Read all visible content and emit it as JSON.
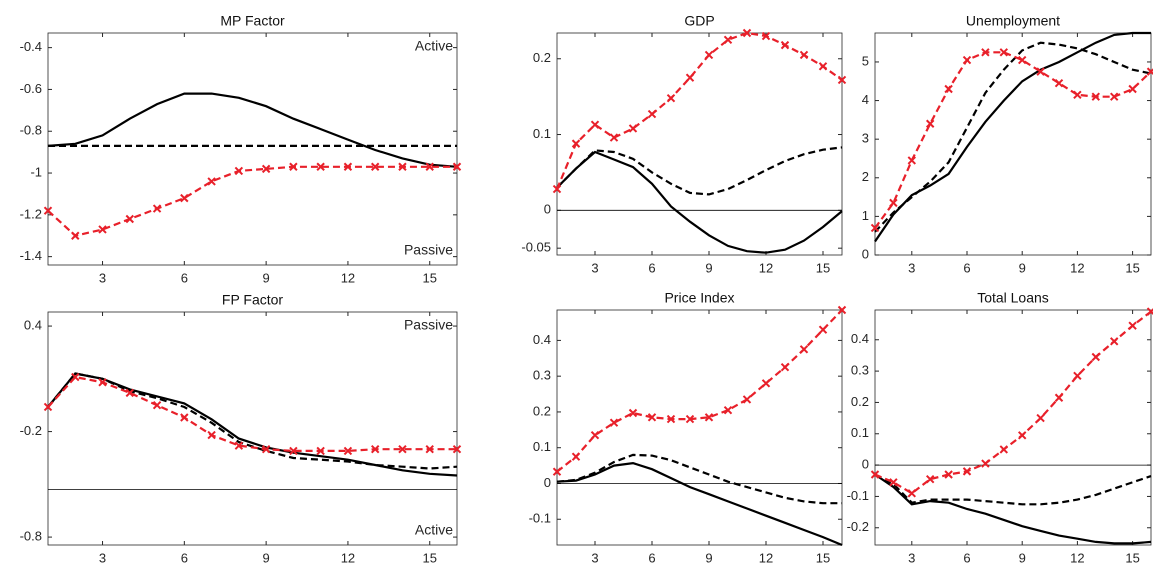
{
  "chart_data": [
    {
      "type": "line",
      "title": "MP Factor",
      "x": [
        1,
        2,
        3,
        4,
        5,
        6,
        7,
        8,
        9,
        10,
        11,
        12,
        13,
        14,
        15,
        16
      ],
      "xlim": [
        1,
        16
      ],
      "xticks": [
        3,
        6,
        9,
        12,
        15
      ],
      "ylim": [
        -1.44,
        -0.33
      ],
      "yticks": [
        -0.4,
        -0.6,
        -0.8,
        -1,
        -1.2,
        -1.4
      ],
      "annotations": [
        "Active",
        "Passive"
      ],
      "series": [
        {
          "color": "#000000",
          "style": "solid",
          "values": [
            -0.87,
            -0.86,
            -0.82,
            -0.74,
            -0.67,
            -0.62,
            -0.62,
            -0.64,
            -0.68,
            -0.74,
            -0.79,
            -0.84,
            -0.89,
            -0.93,
            -0.96,
            -0.97
          ]
        },
        {
          "color": "#000000",
          "style": "dashed",
          "values": [
            -0.87,
            -0.87,
            -0.87,
            -0.87,
            -0.87,
            -0.87,
            -0.87,
            -0.87,
            -0.87,
            -0.87,
            -0.87,
            -0.87,
            -0.87,
            -0.87,
            -0.87,
            -0.87
          ]
        },
        {
          "color": "#e8202a",
          "style": "dashed",
          "marker": "x",
          "values": [
            -1.18,
            -1.3,
            -1.27,
            -1.22,
            -1.17,
            -1.12,
            -1.04,
            -0.99,
            -0.98,
            -0.97,
            -0.97,
            -0.97,
            -0.97,
            -0.97,
            -0.97,
            -0.97
          ]
        }
      ]
    },
    {
      "type": "line",
      "title": "FP Factor",
      "x": [
        1,
        2,
        3,
        4,
        5,
        6,
        7,
        8,
        9,
        10,
        11,
        12,
        13,
        14,
        15,
        16
      ],
      "xlim": [
        1,
        16
      ],
      "xticks": [
        3,
        6,
        9,
        12,
        15
      ],
      "ylim": [
        -0.845,
        0.48
      ],
      "yticks": [
        0.4,
        -0.2,
        -0.8
      ],
      "hline": -0.53,
      "annotations": [
        "Passive",
        "Active"
      ],
      "series": [
        {
          "color": "#000000",
          "style": "solid",
          "values": [
            -0.06,
            0.13,
            0.1,
            0.04,
            0.0,
            -0.04,
            -0.13,
            -0.24,
            -0.29,
            -0.32,
            -0.34,
            -0.36,
            -0.39,
            -0.42,
            -0.44,
            -0.45
          ]
        },
        {
          "color": "#000000",
          "style": "dashed",
          "values": [
            -0.06,
            0.13,
            0.1,
            0.03,
            -0.01,
            -0.06,
            -0.15,
            -0.26,
            -0.31,
            -0.35,
            -0.36,
            -0.37,
            -0.39,
            -0.4,
            -0.41,
            -0.4
          ]
        },
        {
          "color": "#e8202a",
          "style": "dashed",
          "marker": "x",
          "values": [
            -0.06,
            0.11,
            0.08,
            0.02,
            -0.05,
            -0.12,
            -0.22,
            -0.28,
            -0.3,
            -0.31,
            -0.31,
            -0.31,
            -0.3,
            -0.3,
            -0.3,
            -0.3
          ]
        }
      ]
    },
    {
      "type": "line",
      "title": "GDP",
      "x": [
        1,
        2,
        3,
        4,
        5,
        6,
        7,
        8,
        9,
        10,
        11,
        12,
        13,
        14,
        15,
        16
      ],
      "xlim": [
        1,
        16
      ],
      "xticks": [
        3,
        6,
        9,
        12,
        15
      ],
      "ylim": [
        -0.059,
        0.234
      ],
      "yticks": [
        0.2,
        0.1,
        0,
        -0.05
      ],
      "hline": 0,
      "series": [
        {
          "color": "#000000",
          "style": "solid",
          "values": [
            0.03,
            0.055,
            0.077,
            0.067,
            0.057,
            0.035,
            0.005,
            -0.015,
            -0.033,
            -0.047,
            -0.054,
            -0.056,
            -0.052,
            -0.04,
            -0.022,
            -0.001
          ]
        },
        {
          "color": "#000000",
          "style": "dashed",
          "values": [
            0.03,
            0.055,
            0.079,
            0.077,
            0.068,
            0.05,
            0.035,
            0.023,
            0.021,
            0.028,
            0.04,
            0.053,
            0.065,
            0.074,
            0.08,
            0.083
          ]
        },
        {
          "color": "#e8202a",
          "style": "dashed",
          "marker": "x",
          "values": [
            0.028,
            0.088,
            0.113,
            0.096,
            0.108,
            0.127,
            0.148,
            0.175,
            0.205,
            0.225,
            0.234,
            0.23,
            0.218,
            0.205,
            0.19,
            0.172
          ]
        }
      ]
    },
    {
      "type": "line",
      "title": "Unemployment",
      "x": [
        1,
        2,
        3,
        4,
        5,
        6,
        7,
        8,
        9,
        10,
        11,
        12,
        13,
        14,
        15,
        16
      ],
      "xlim": [
        1,
        16
      ],
      "xticks": [
        3,
        6,
        9,
        12,
        15
      ],
      "ylim": [
        0,
        5.75
      ],
      "yticks": [
        0,
        1,
        2,
        3,
        4,
        5
      ],
      "series": [
        {
          "color": "#000000",
          "style": "solid",
          "values": [
            0.35,
            1.05,
            1.55,
            1.8,
            2.1,
            2.8,
            3.45,
            4.0,
            4.5,
            4.8,
            5.0,
            5.25,
            5.5,
            5.7,
            5.75,
            5.75
          ]
        },
        {
          "color": "#000000",
          "style": "dashed",
          "values": [
            0.6,
            1.1,
            1.5,
            1.9,
            2.4,
            3.3,
            4.2,
            4.8,
            5.3,
            5.5,
            5.45,
            5.35,
            5.2,
            5.0,
            4.8,
            4.7
          ]
        },
        {
          "color": "#e8202a",
          "style": "dashed",
          "marker": "x",
          "values": [
            0.7,
            1.35,
            2.45,
            3.4,
            4.3,
            5.05,
            5.25,
            5.25,
            5.05,
            4.75,
            4.45,
            4.15,
            4.1,
            4.1,
            4.3,
            4.75
          ]
        }
      ]
    },
    {
      "type": "line",
      "title": "Price Index",
      "x": [
        1,
        2,
        3,
        4,
        5,
        6,
        7,
        8,
        9,
        10,
        11,
        12,
        13,
        14,
        15,
        16
      ],
      "xlim": [
        1,
        16
      ],
      "xticks": [
        3,
        6,
        9,
        12,
        15
      ],
      "ylim": [
        -0.172,
        0.485
      ],
      "yticks": [
        0.4,
        0.3,
        0.2,
        0.1,
        0,
        -0.1
      ],
      "hline": 0,
      "series": [
        {
          "color": "#000000",
          "style": "solid",
          "values": [
            0.005,
            0.008,
            0.025,
            0.05,
            0.057,
            0.04,
            0.015,
            -0.01,
            -0.03,
            -0.05,
            -0.07,
            -0.09,
            -0.11,
            -0.13,
            -0.15,
            -0.172
          ]
        },
        {
          "color": "#000000",
          "style": "dashed",
          "values": [
            0.005,
            0.01,
            0.03,
            0.06,
            0.08,
            0.078,
            0.065,
            0.045,
            0.025,
            0.005,
            -0.01,
            -0.025,
            -0.04,
            -0.05,
            -0.055,
            -0.055
          ]
        },
        {
          "color": "#e8202a",
          "style": "dashed",
          "marker": "x",
          "values": [
            0.033,
            0.075,
            0.135,
            0.17,
            0.197,
            0.185,
            0.18,
            0.18,
            0.185,
            0.205,
            0.235,
            0.28,
            0.325,
            0.375,
            0.43,
            0.485
          ]
        }
      ]
    },
    {
      "type": "line",
      "title": "Total Loans",
      "x": [
        1,
        2,
        3,
        4,
        5,
        6,
        7,
        8,
        9,
        10,
        11,
        12,
        13,
        14,
        15,
        16
      ],
      "xlim": [
        1,
        16
      ],
      "xticks": [
        3,
        6,
        9,
        12,
        15
      ],
      "ylim": [
        -0.255,
        0.495
      ],
      "yticks": [
        0.4,
        0.3,
        0.2,
        0.1,
        0,
        -0.1,
        -0.2
      ],
      "hline": 0,
      "series": [
        {
          "color": "#000000",
          "style": "solid",
          "values": [
            -0.03,
            -0.07,
            -0.125,
            -0.115,
            -0.12,
            -0.14,
            -0.155,
            -0.175,
            -0.195,
            -0.21,
            -0.225,
            -0.235,
            -0.245,
            -0.25,
            -0.25,
            -0.245
          ]
        },
        {
          "color": "#000000",
          "style": "dashed",
          "values": [
            -0.03,
            -0.06,
            -0.12,
            -0.11,
            -0.11,
            -0.11,
            -0.115,
            -0.12,
            -0.125,
            -0.125,
            -0.12,
            -0.11,
            -0.095,
            -0.075,
            -0.055,
            -0.035
          ]
        },
        {
          "color": "#e8202a",
          "style": "dashed",
          "marker": "x",
          "values": [
            -0.03,
            -0.055,
            -0.09,
            -0.045,
            -0.03,
            -0.02,
            0.005,
            0.05,
            0.095,
            0.15,
            0.215,
            0.285,
            0.345,
            0.395,
            0.445,
            0.49
          ]
        }
      ]
    }
  ]
}
